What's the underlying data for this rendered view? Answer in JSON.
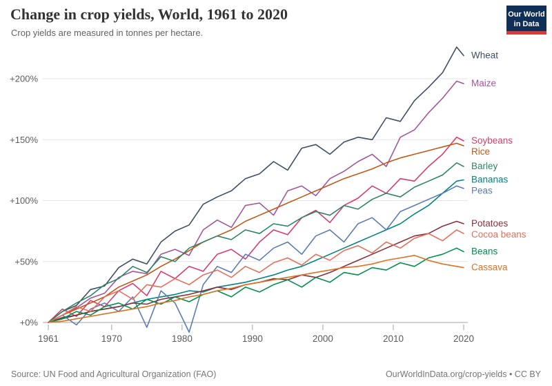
{
  "header": {
    "title": "Change in crop yields, World, 1961 to 2020",
    "subtitle": "Crop yields are measured in tonnes per hectare.",
    "logo_line1": "Our World",
    "logo_line2": "in Data"
  },
  "footer": {
    "source": "Source: UN Food and Agricultural Organization (FAO)",
    "attribution": "OurWorldInData.org/crop-yields • CC BY"
  },
  "colors": {
    "logo_bg": "#102F56",
    "logo_accent": "#D93A3A",
    "gridline": "#e4e4e4",
    "zero_line": "#a1a1a1",
    "tick_text": "#5b5b5b"
  },
  "chart_data": {
    "type": "line",
    "title": "Change in crop yields, World, 1961 to 2020",
    "xlabel": "",
    "ylabel": "",
    "grid": true,
    "legend_position": "right-labels",
    "ylim": [
      -15,
      235
    ],
    "y_tick_values": [
      0,
      50,
      100,
      150,
      200
    ],
    "y_tick_labels": [
      "+0%",
      "+50%",
      "+100%",
      "+150%",
      "+200%"
    ],
    "x_tick_values": [
      1961,
      1970,
      1980,
      1990,
      2000,
      2010,
      2020
    ],
    "x_tick_labels": [
      "1961",
      "1970",
      "1980",
      "1990",
      "2000",
      "2010",
      "2020"
    ],
    "x": [
      1961,
      1963,
      1965,
      1967,
      1969,
      1971,
      1973,
      1975,
      1977,
      1979,
      1981,
      1983,
      1985,
      1987,
      1989,
      1991,
      1993,
      1995,
      1997,
      1999,
      2001,
      2003,
      2005,
      2007,
      2009,
      2011,
      2013,
      2015,
      2017,
      2019,
      2020
    ],
    "series": [
      {
        "name": "Wheat",
        "color": "#3C4E66",
        "values": [
          0,
          9,
          14,
          27,
          30,
          45,
          52,
          48,
          66,
          75,
          80,
          97,
          103,
          108,
          118,
          122,
          132,
          125,
          143,
          146,
          138,
          148,
          152,
          150,
          168,
          165,
          182,
          193,
          205,
          226,
          219
        ]
      },
      {
        "name": "Maize",
        "color": "#A2559C",
        "values": [
          0,
          6,
          12,
          20,
          24,
          37,
          42,
          40,
          56,
          60,
          55,
          76,
          84,
          78,
          96,
          98,
          88,
          108,
          112,
          104,
          118,
          124,
          132,
          138,
          128,
          152,
          158,
          172,
          184,
          198,
          196
        ]
      },
      {
        "name": "Soybeans",
        "color": "#D73C6C",
        "values": [
          0,
          11,
          5,
          18,
          13,
          26,
          32,
          22,
          42,
          36,
          46,
          42,
          56,
          60,
          52,
          66,
          76,
          72,
          86,
          92,
          82,
          96,
          102,
          112,
          106,
          118,
          116,
          128,
          138,
          152,
          149
        ]
      },
      {
        "name": "Rice",
        "color": "#BE5915",
        "values": [
          0,
          6,
          11,
          16,
          21,
          29,
          34,
          39,
          46,
          52,
          59,
          66,
          71,
          76,
          83,
          88,
          93,
          98,
          103,
          108,
          113,
          118,
          122,
          126,
          131,
          135,
          138,
          141,
          144,
          147,
          145
        ]
      },
      {
        "name": "Barley",
        "color": "#2C8465",
        "values": [
          0,
          9,
          16,
          22,
          31,
          36,
          46,
          41,
          54,
          50,
          61,
          66,
          71,
          68,
          76,
          73,
          81,
          79,
          86,
          91,
          88,
          96,
          93,
          101,
          106,
          103,
          111,
          116,
          121,
          131,
          128
        ]
      },
      {
        "name": "Bananas",
        "color": "#00847E",
        "values": [
          0,
          3,
          6,
          9,
          11,
          13,
          16,
          19,
          21,
          23,
          26,
          25,
          29,
          31,
          33,
          36,
          39,
          43,
          46,
          51,
          56,
          61,
          66,
          71,
          76,
          81,
          89,
          96,
          106,
          116,
          117
        ]
      },
      {
        "name": "Peas",
        "color": "#5B7BB5",
        "values": [
          0,
          6,
          -2,
          11,
          16,
          9,
          21,
          -4,
          26,
          16,
          -8,
          31,
          46,
          41,
          56,
          51,
          61,
          66,
          56,
          71,
          76,
          66,
          81,
          86,
          76,
          91,
          96,
          101,
          106,
          112,
          110
        ]
      },
      {
        "name": "Potatoes",
        "color": "#883039",
        "values": [
          0,
          4,
          6,
          9,
          11,
          13,
          16,
          15,
          19,
          21,
          23,
          26,
          29,
          27,
          31,
          33,
          36,
          35,
          39,
          37,
          41,
          46,
          51,
          56,
          61,
          66,
          71,
          73,
          79,
          83,
          81
        ]
      },
      {
        "name": "Cocoa beans",
        "color": "#E56E5A",
        "values": [
          0,
          6,
          13,
          9,
          21,
          26,
          19,
          31,
          29,
          36,
          31,
          39,
          43,
          37,
          46,
          41,
          49,
          53,
          47,
          56,
          51,
          59,
          63,
          57,
          66,
          61,
          69,
          73,
          67,
          76,
          73
        ]
      },
      {
        "name": "Beans",
        "color": "#008F4C",
        "values": [
          0,
          3,
          9,
          6,
          13,
          16,
          11,
          19,
          15,
          21,
          17,
          23,
          26,
          21,
          29,
          25,
          31,
          35,
          29,
          37,
          33,
          41,
          39,
          45,
          43,
          49,
          46,
          53,
          56,
          61,
          58
        ]
      },
      {
        "name": "Cassava",
        "color": "#DC7120",
        "values": [
          0,
          1,
          3,
          5,
          7,
          9,
          11,
          13,
          16,
          18,
          21,
          23,
          26,
          28,
          31,
          33,
          35,
          37,
          39,
          41,
          43,
          45,
          46,
          48,
          51,
          53,
          55,
          51,
          48,
          46,
          45
        ]
      }
    ]
  }
}
